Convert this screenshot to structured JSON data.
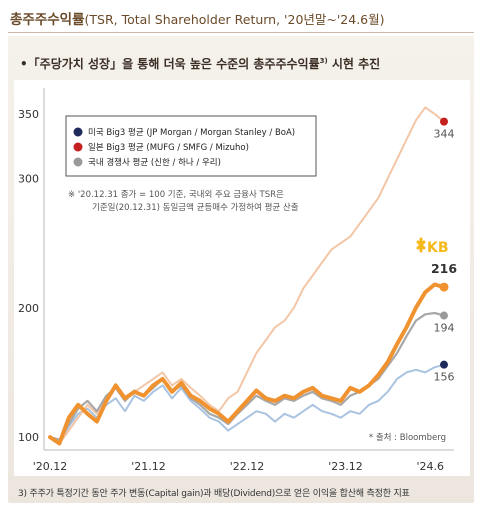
{
  "header": {
    "title": "총주주수익률",
    "title_sub": "(TSR, Total Shareholder Return, '20년말~'24.6월)"
  },
  "headline": {
    "text": "•「주당가치 성장」을 통해 더욱 높은 수준의 총주주수익률",
    "sup": "3)",
    "tail": " 시현 추진"
  },
  "footnote": "3) 주주가 특정기간 동안 주가 변동(Capital gain)과 배당(Dividend)으로 얻은 이익을 합산해 측정한 지표",
  "source": "* 출처 : Bloomberg",
  "note_lines": [
    "※ '20.12.31 종가 = 100 기준, 국내외 주요 금융사 TSR은",
    "기준일(20.12.31) 동일금액 균등매수 가정하여 평균 산출"
  ],
  "kb_logo": "KB",
  "colors": {
    "us": "#1f2a5c",
    "jp": "#c4201f",
    "korea": "#9a9a9a",
    "us_line": "#a9c3e0",
    "jp_line": "#f3c6a6",
    "kb": "#f0922f",
    "kb_logo": "#f6b91c"
  },
  "chart_data": {
    "type": "line",
    "xlabel": "",
    "ylabel": "",
    "x_ticks": [
      "'20.12",
      "'21.12",
      "'22.12",
      "'23.12",
      "'24.6"
    ],
    "y_ticks": [
      100,
      200,
      300,
      350
    ],
    "ylim": [
      90,
      370
    ],
    "x": [
      0,
      1,
      2,
      3,
      4,
      5,
      6,
      7,
      8,
      9,
      10,
      11,
      12,
      13,
      14,
      15,
      16,
      17,
      18,
      19,
      20,
      21,
      22,
      23,
      24,
      25,
      26,
      27,
      28,
      29,
      30,
      31,
      32,
      33,
      34,
      35,
      36,
      37,
      38,
      39,
      40,
      41,
      42
    ],
    "series": [
      {
        "name": "미국 Big3 평균 (JP Morgan / Morgan Stanley / BoA)",
        "key": "us",
        "end_label": "156",
        "values": [
          100,
          96,
          108,
          118,
          122,
          115,
          125,
          130,
          120,
          132,
          128,
          135,
          140,
          130,
          138,
          128,
          122,
          115,
          112,
          105,
          110,
          115,
          120,
          118,
          112,
          118,
          115,
          120,
          125,
          120,
          118,
          115,
          120,
          118,
          125,
          128,
          135,
          145,
          150,
          152,
          150,
          154,
          156
        ]
      },
      {
        "name": "일본 Big3 평균 (MUFG / SMFG / Mizuho)",
        "key": "jp",
        "end_label": "344",
        "values": [
          100,
          95,
          105,
          115,
          125,
          118,
          130,
          138,
          128,
          135,
          140,
          145,
          150,
          140,
          145,
          138,
          132,
          125,
          120,
          130,
          135,
          150,
          165,
          175,
          185,
          190,
          200,
          215,
          225,
          235,
          245,
          250,
          255,
          265,
          275,
          285,
          300,
          315,
          330,
          345,
          355,
          350,
          344
        ]
      },
      {
        "name": "국내 경쟁사 평균 (신한 / 하나 / 우리)",
        "key": "korea",
        "end_label": "194",
        "values": [
          100,
          98,
          110,
          122,
          128,
          120,
          132,
          138,
          128,
          136,
          132,
          138,
          145,
          135,
          140,
          130,
          125,
          118,
          115,
          110,
          118,
          125,
          132,
          128,
          125,
          130,
          128,
          132,
          135,
          130,
          128,
          125,
          132,
          135,
          140,
          145,
          155,
          165,
          178,
          190,
          195,
          196,
          194
        ]
      },
      {
        "name": "KB",
        "key": "kb",
        "end_label": "216",
        "values": [
          100,
          95,
          115,
          125,
          118,
          112,
          128,
          140,
          130,
          135,
          132,
          140,
          145,
          135,
          142,
          132,
          128,
          122,
          118,
          112,
          120,
          128,
          136,
          130,
          128,
          132,
          130,
          135,
          138,
          132,
          130,
          128,
          138,
          135,
          140,
          148,
          158,
          172,
          185,
          200,
          212,
          218,
          216
        ]
      }
    ]
  }
}
